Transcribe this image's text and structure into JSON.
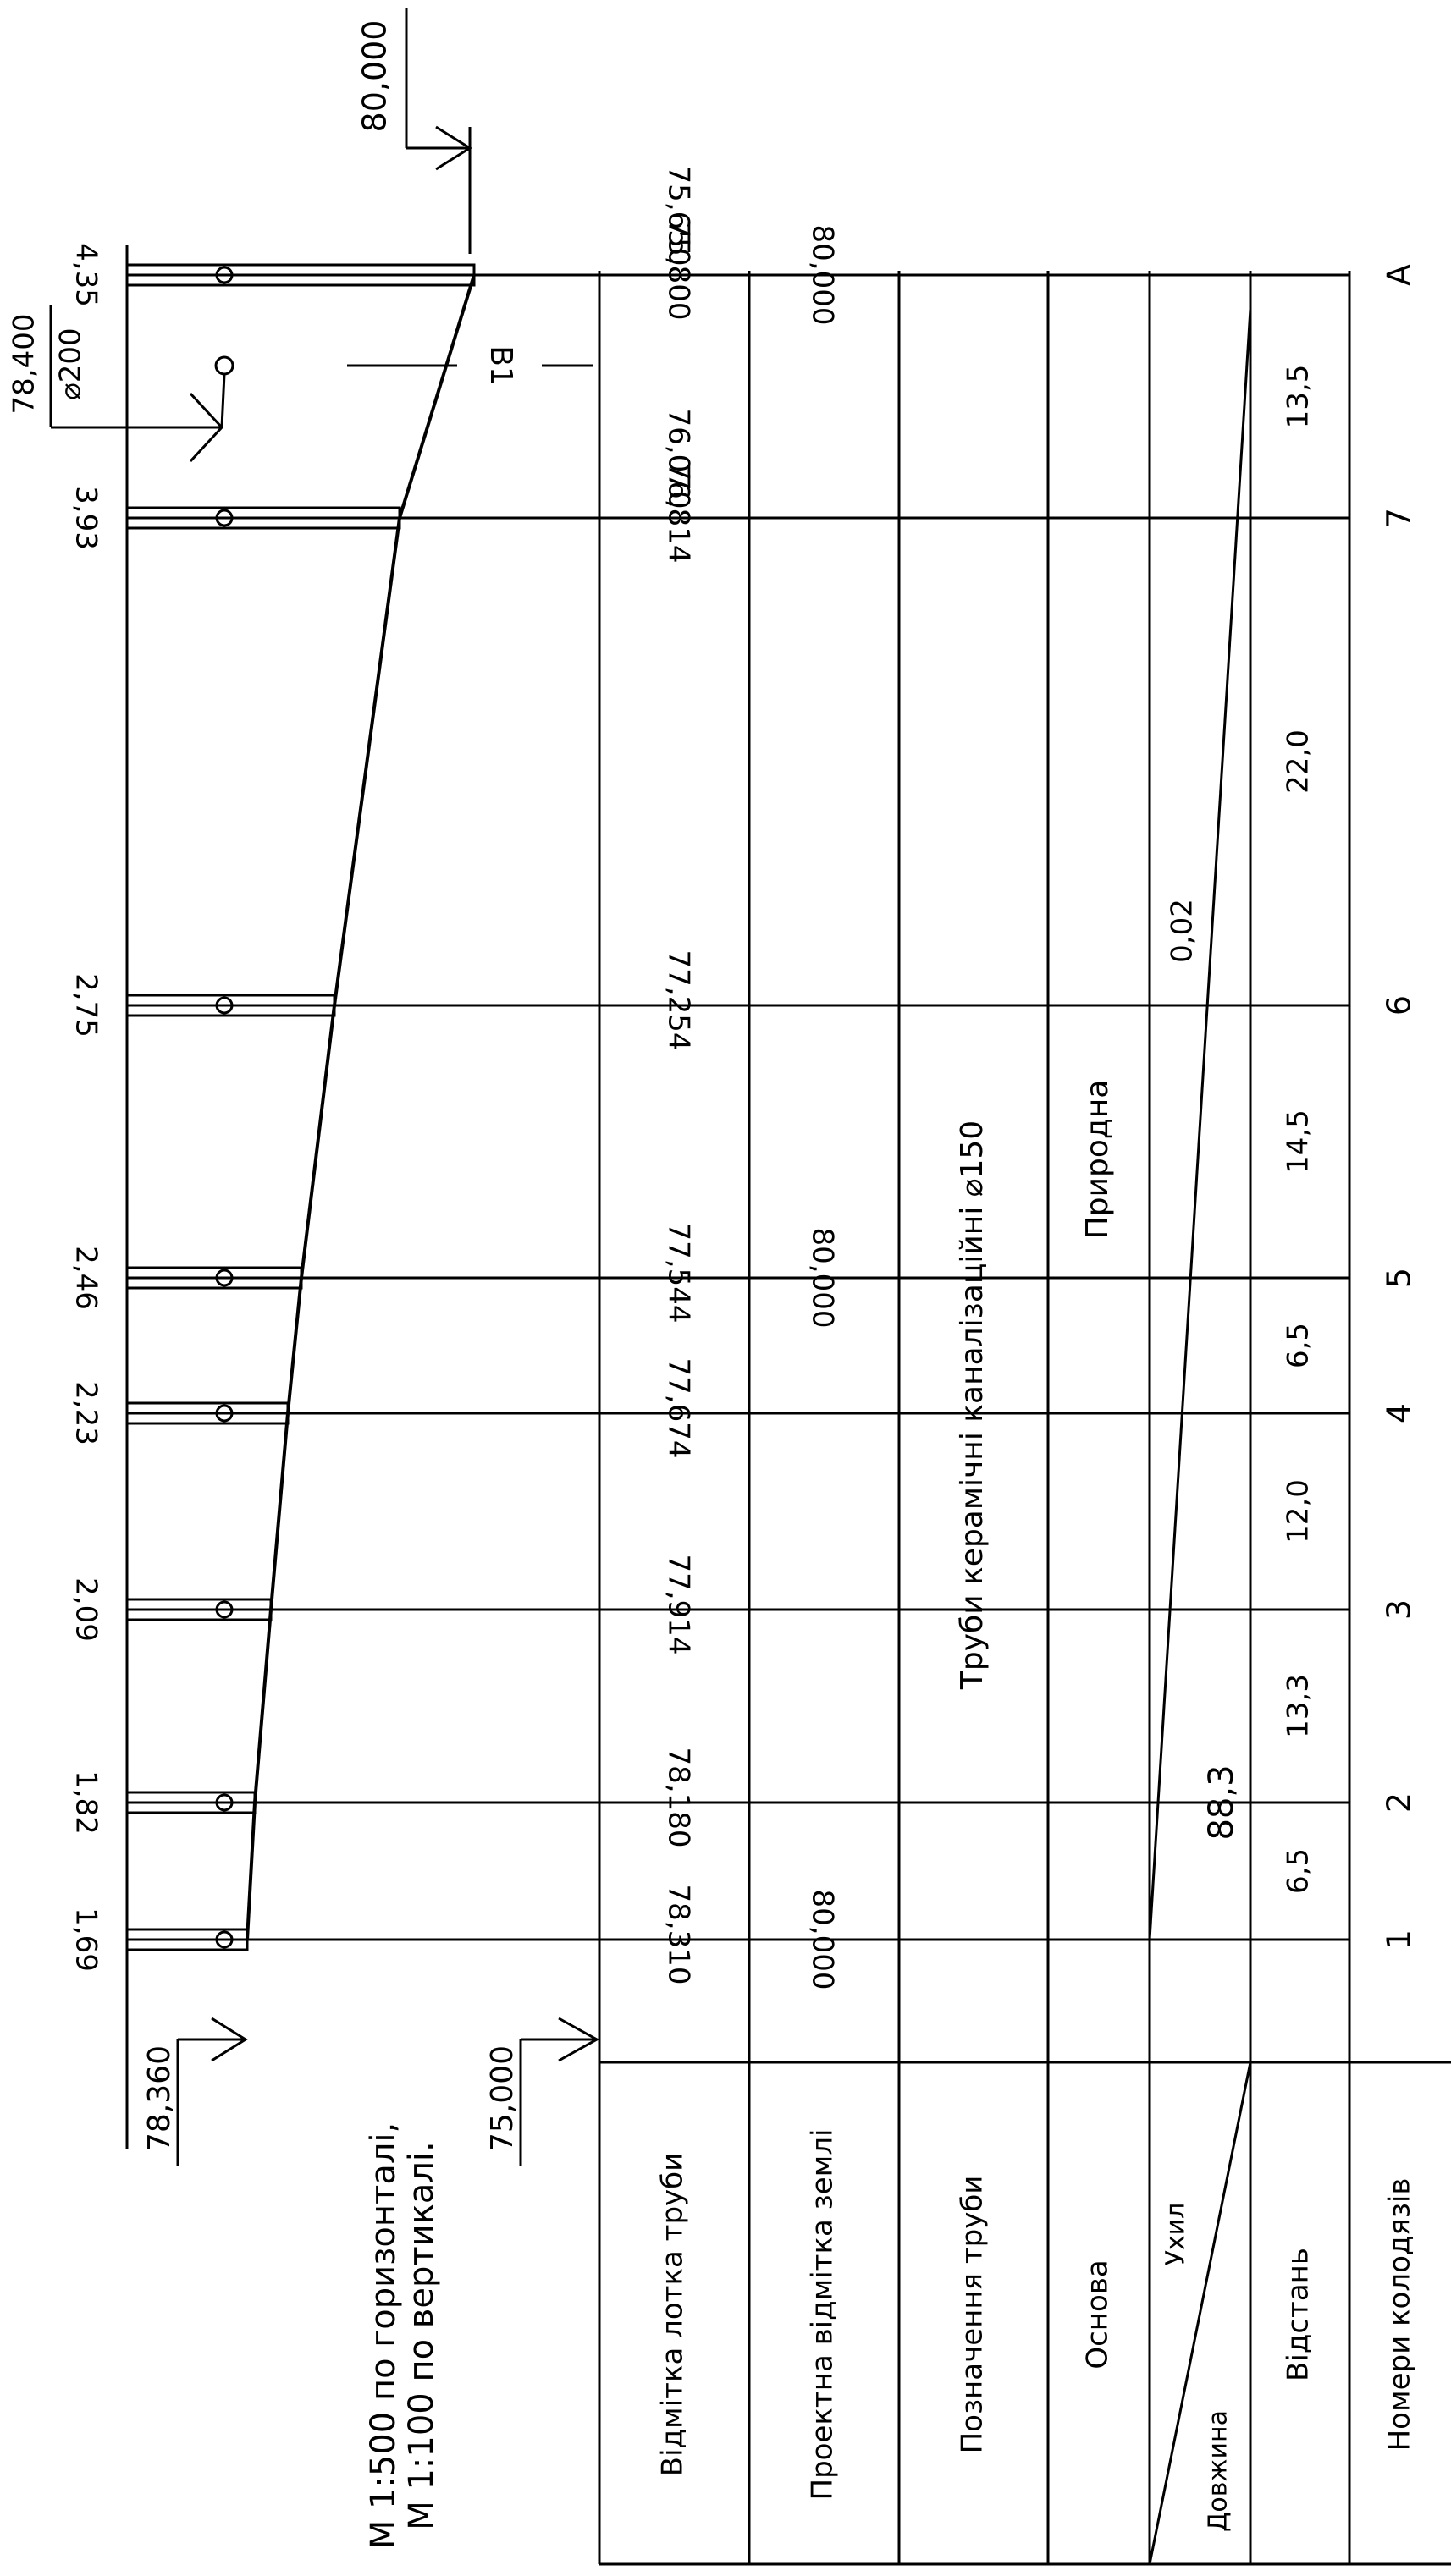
{
  "header": {
    "top_datum": "80,000",
    "scale_line_1": "М 1:500 по горизонталі,",
    "scale_line_2": "М 1:100 по вертикалі.",
    "bottom_datum_left": "78,360",
    "bottom_datum_right": "75,000",
    "inlet_level": "78,400",
    "inlet_diameter": "⌀200",
    "section_label": "В1"
  },
  "row_headers": {
    "invert": "Відмітка лотка труби",
    "ground": "Проектна відмітка землі",
    "pipe": "Позначення труби",
    "base": "Основа",
    "slope": "Ухил",
    "length": "Довжина",
    "distance": "Відстань",
    "wells": "Номери колодязів"
  },
  "wells": [
    {
      "id": "1",
      "depth": "1,69",
      "invert": "78,310",
      "ground": "80,000"
    },
    {
      "id": "2",
      "depth": "1,82",
      "invert": "78,180",
      "ground": ""
    },
    {
      "id": "3",
      "depth": "2,09",
      "invert": "77,914",
      "ground": ""
    },
    {
      "id": "4",
      "depth": "2,23",
      "invert": "77,674",
      "ground": ""
    },
    {
      "id": "5",
      "depth": "2,46",
      "invert": "77,544",
      "ground": "80,000"
    },
    {
      "id": "6",
      "depth": "2,75",
      "invert": "77,254",
      "ground": ""
    },
    {
      "id": "7",
      "depth": "3,93",
      "invert": "76,814",
      "invert_upper": "76,070",
      "ground": ""
    },
    {
      "id": "А",
      "depth": "4,35",
      "invert": "75,800",
      "invert_upper": "75,650",
      "ground": "80,000"
    }
  ],
  "distances": [
    "6,5",
    "13,3",
    "12,0",
    "6,5",
    "14,5",
    "22,0",
    "13,5"
  ],
  "pipe_label": "Труби керамічні каналізаційні",
  "pipe_diameter": "⌀150",
  "base_label": "Природна",
  "slope_value": "0,02",
  "length_value": "88,3"
}
